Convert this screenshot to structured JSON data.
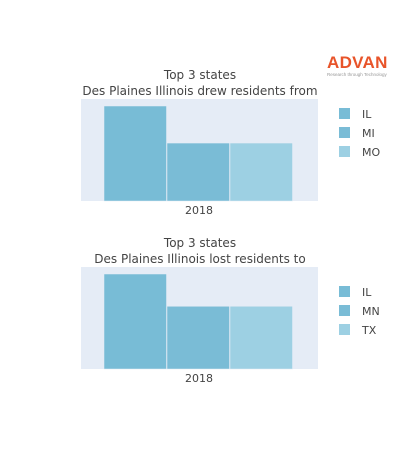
{
  "logo": {
    "word": "ADVAN",
    "tagline": "Research through Technology",
    "color": "#e8542a"
  },
  "chart_data": [
    {
      "type": "bar",
      "title": "Top 3 states",
      "subtitle": "Des Plaines Illinois drew residents from",
      "categories": [
        "2018"
      ],
      "series": [
        {
          "name": "IL",
          "values": [
            100
          ],
          "color": "#78bcd6"
        },
        {
          "name": "MI",
          "values": [
            61
          ],
          "color": "#7abcd6"
        },
        {
          "name": "MO",
          "values": [
            61
          ],
          "color": "#9dd0e3"
        }
      ],
      "ylim": [
        0,
        100
      ],
      "legend": "right"
    },
    {
      "type": "bar",
      "title": "Top 3 states",
      "subtitle": "Des Plaines Illinois lost residents to",
      "categories": [
        "2018"
      ],
      "series": [
        {
          "name": "IL",
          "values": [
            100
          ],
          "color": "#78bcd6"
        },
        {
          "name": "MN",
          "values": [
            66
          ],
          "color": "#7abcd6"
        },
        {
          "name": "TX",
          "values": [
            66
          ],
          "color": "#9dd0e3"
        }
      ],
      "ylim": [
        0,
        100
      ],
      "legend": "right"
    }
  ]
}
